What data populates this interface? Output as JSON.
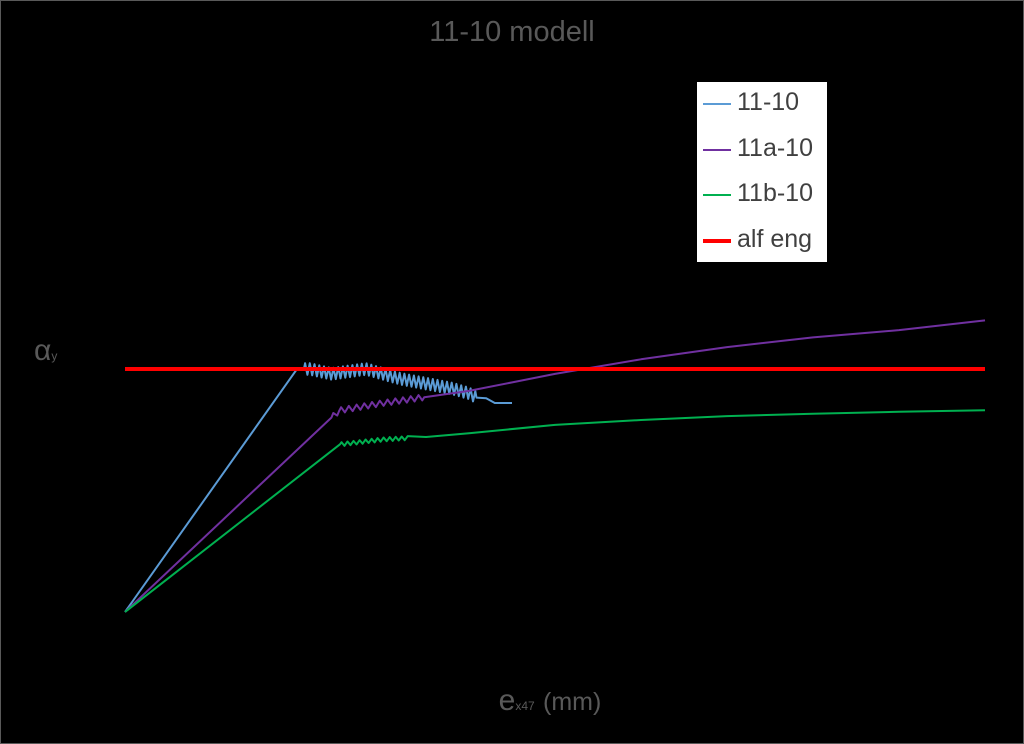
{
  "chart_data": {
    "type": "line",
    "title": "11-10 modell",
    "ylabel": {
      "main": "α",
      "sub": "y"
    },
    "xlabel": {
      "main": "e",
      "sub": "x47",
      "unit": "(mm)"
    },
    "legend_position": "top-right",
    "grid": false,
    "axis_ticks_shown": false,
    "x_unit": "mm",
    "series": [
      {
        "name": "11-10",
        "color": "#5b9bd5",
        "width": 2,
        "points": [
          [
            0,
            0
          ],
          [
            0.2,
            0.5
          ],
          [
            0.215,
            0.5
          ],
          [
            0.24,
            0.49
          ],
          [
            0.28,
            0.5
          ],
          [
            0.32,
            0.48
          ],
          [
            0.35,
            0.47
          ],
          [
            0.38,
            0.46
          ],
          [
            0.4,
            0.45
          ],
          [
            0.41,
            0.44
          ],
          [
            0.42,
            0.44
          ],
          [
            0.43,
            0.43
          ],
          [
            0.45,
            0.43
          ]
        ],
        "wiggle": {
          "from": 0.208,
          "to": 0.41,
          "amplitude": 0.012,
          "period": 0.0055
        }
      },
      {
        "name": "11a-10",
        "color": "#7030a0",
        "width": 2,
        "points": [
          [
            0,
            0
          ],
          [
            0.24,
            0.4
          ],
          [
            0.25,
            0.415
          ],
          [
            0.3,
            0.43
          ],
          [
            0.4,
            0.455
          ],
          [
            0.5,
            0.49
          ],
          [
            0.6,
            0.52
          ],
          [
            0.7,
            0.545
          ],
          [
            0.8,
            0.565
          ],
          [
            0.9,
            0.58
          ],
          [
            1.0,
            0.6
          ]
        ],
        "wiggle": {
          "from": 0.24,
          "to": 0.35,
          "amplitude": 0.006,
          "period": 0.009
        }
      },
      {
        "name": "11b-10",
        "color": "#00b050",
        "width": 2,
        "points": [
          [
            0,
            0
          ],
          [
            0.25,
            0.345
          ],
          [
            0.3,
            0.355
          ],
          [
            0.35,
            0.36
          ],
          [
            0.4,
            0.368
          ],
          [
            0.5,
            0.385
          ],
          [
            0.6,
            0.395
          ],
          [
            0.7,
            0.403
          ],
          [
            0.8,
            0.408
          ],
          [
            0.9,
            0.412
          ],
          [
            1.0,
            0.415
          ]
        ],
        "wiggle": {
          "from": 0.25,
          "to": 0.33,
          "amplitude": 0.004,
          "period": 0.007
        }
      },
      {
        "name": "alf eng",
        "color": "#ff0000",
        "width": 4,
        "points": [
          [
            0,
            0.5
          ],
          [
            1.0,
            0.5
          ]
        ]
      }
    ],
    "xlim": [
      0,
      1.0
    ],
    "ylim": [
      0,
      1.0
    ]
  }
}
